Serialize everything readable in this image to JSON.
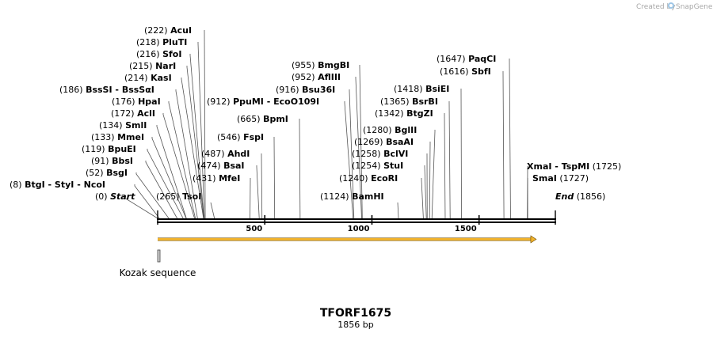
{
  "credit": "Created by",
  "brand": "SnapGene",
  "sequence": {
    "name": "TFORF1675",
    "size_label": "1856 bp",
    "length": 1856
  },
  "axis_ticks": [
    {
      "value": 500,
      "label": "500"
    },
    {
      "value": 1000,
      "label": "1000"
    },
    {
      "value": 1500,
      "label": "1500"
    }
  ],
  "ends": [
    {
      "pos": "(0)",
      "name": "Start",
      "value": 0
    },
    {
      "pos": "(1856)",
      "name": "End",
      "value": 1856
    }
  ],
  "sites": [
    {
      "pos": "(8)",
      "names": [
        "BtgI",
        "StyI",
        "NcoI"
      ],
      "value": 8
    },
    {
      "pos": "(52)",
      "names": [
        "BsgI"
      ],
      "value": 52
    },
    {
      "pos": "(91)",
      "names": [
        "BbsI"
      ],
      "value": 91
    },
    {
      "pos": "(119)",
      "names": [
        "BpuEI"
      ],
      "value": 119
    },
    {
      "pos": "(133)",
      "names": [
        "MmeI"
      ],
      "value": 133
    },
    {
      "pos": "(134)",
      "names": [
        "SmlI"
      ],
      "value": 134
    },
    {
      "pos": "(172)",
      "names": [
        "AclI"
      ],
      "value": 172
    },
    {
      "pos": "(176)",
      "names": [
        "HpaI"
      ],
      "value": 176
    },
    {
      "pos": "(186)",
      "names": [
        "BssSI",
        "BssSαI"
      ],
      "value": 186
    },
    {
      "pos": "(214)",
      "names": [
        "KasI"
      ],
      "value": 214
    },
    {
      "pos": "(215)",
      "names": [
        "NarI"
      ],
      "value": 215
    },
    {
      "pos": "(216)",
      "names": [
        "SfoI"
      ],
      "value": 216
    },
    {
      "pos": "(218)",
      "names": [
        "PluTI"
      ],
      "value": 218
    },
    {
      "pos": "(222)",
      "names": [
        "AcuI"
      ],
      "value": 222
    },
    {
      "pos": "(265)",
      "names": [
        "TsoI"
      ],
      "value": 265
    },
    {
      "pos": "(431)",
      "names": [
        "MfeI"
      ],
      "value": 431
    },
    {
      "pos": "(474)",
      "names": [
        "BsaI"
      ],
      "value": 474
    },
    {
      "pos": "(487)",
      "names": [
        "AhdI"
      ],
      "value": 487
    },
    {
      "pos": "(546)",
      "names": [
        "FspI"
      ],
      "value": 546
    },
    {
      "pos": "(665)",
      "names": [
        "BpmI"
      ],
      "value": 665
    },
    {
      "pos": "(912)",
      "names": [
        "PpuMI",
        "EcoO109I"
      ],
      "value": 912
    },
    {
      "pos": "(916)",
      "names": [
        "Bsu36I"
      ],
      "value": 916
    },
    {
      "pos": "(952)",
      "names": [
        "AflIII"
      ],
      "value": 952
    },
    {
      "pos": "(955)",
      "names": [
        "BmgBI"
      ],
      "value": 955
    },
    {
      "pos": "(1124)",
      "names": [
        "BamHI"
      ],
      "value": 1124
    },
    {
      "pos": "(1240)",
      "names": [
        "EcoRI"
      ],
      "value": 1240
    },
    {
      "pos": "(1254)",
      "names": [
        "StuI"
      ],
      "value": 1254
    },
    {
      "pos": "(1258)",
      "names": [
        "BclVI"
      ],
      "value": 1258
    },
    {
      "pos": "(1269)",
      "names": [
        "BsaAI"
      ],
      "value": 1269
    },
    {
      "pos": "(1280)",
      "names": [
        "BglII"
      ],
      "value": 1280
    },
    {
      "pos": "(1342)",
      "names": [
        "BtgZI"
      ],
      "value": 1342
    },
    {
      "pos": "(1365)",
      "names": [
        "BsrBI"
      ],
      "value": 1365
    },
    {
      "pos": "(1418)",
      "names": [
        "BsiEI"
      ],
      "value": 1418
    },
    {
      "pos": "(1616)",
      "names": [
        "SbfI"
      ],
      "value": 1616
    },
    {
      "pos": "(1647)",
      "names": [
        "PaqCI"
      ],
      "value": 1647
    },
    {
      "pos": "(1725)",
      "names": [
        "XmaI",
        "TspMI"
      ],
      "value": 1725
    },
    {
      "pos": "(1727)",
      "names": [
        "SmaI"
      ],
      "value": 1727
    }
  ],
  "features": [
    {
      "name": "TFORF1675",
      "type": "orf",
      "start": 1,
      "end": 1767,
      "color": "#f0b22d"
    },
    {
      "name": "Kozak sequence",
      "type": "misc",
      "start": 1,
      "end": 10,
      "color": "#a8a8a8"
    }
  ]
}
